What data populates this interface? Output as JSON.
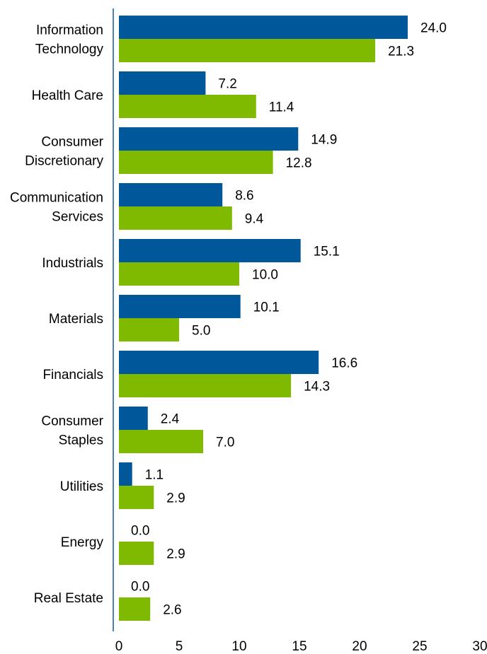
{
  "chart_data": {
    "type": "bar",
    "orientation": "horizontal",
    "categories": [
      [
        "Information",
        "Technology"
      ],
      [
        "Health Care"
      ],
      [
        "Consumer",
        "Discretionary"
      ],
      [
        "Communication",
        "Services"
      ],
      [
        "Industrials"
      ],
      [
        "Materials"
      ],
      [
        "Financials"
      ],
      [
        "Consumer",
        "Staples"
      ],
      [
        "Utilities"
      ],
      [
        "Energy"
      ],
      [
        "Real Estate"
      ]
    ],
    "series": [
      {
        "color": "#00589a",
        "values": [
          24.0,
          7.2,
          14.9,
          8.6,
          15.1,
          10.1,
          16.6,
          2.4,
          1.1,
          0.0,
          0.0
        ],
        "labels": [
          "24.0",
          "7.2",
          "14.9",
          "8.6",
          "15.1",
          "10.1",
          "16.6",
          "2.4",
          "1.1",
          "0.0",
          "0.0"
        ]
      },
      {
        "color": "#7fba00",
        "values": [
          21.3,
          11.4,
          12.8,
          9.4,
          10.0,
          5.0,
          14.3,
          7.0,
          2.9,
          2.9,
          2.6
        ],
        "labels": [
          "21.3",
          "11.4",
          "12.8",
          "9.4",
          "10.0",
          "5.0",
          "14.3",
          "7.0",
          "2.9",
          "2.9",
          "2.6"
        ]
      }
    ],
    "xlim": [
      0,
      30
    ],
    "xticks": [
      "0",
      "5",
      "10",
      "15",
      "20",
      "25",
      "30"
    ],
    "grid": false,
    "axis_color": "#4a7fb5"
  }
}
